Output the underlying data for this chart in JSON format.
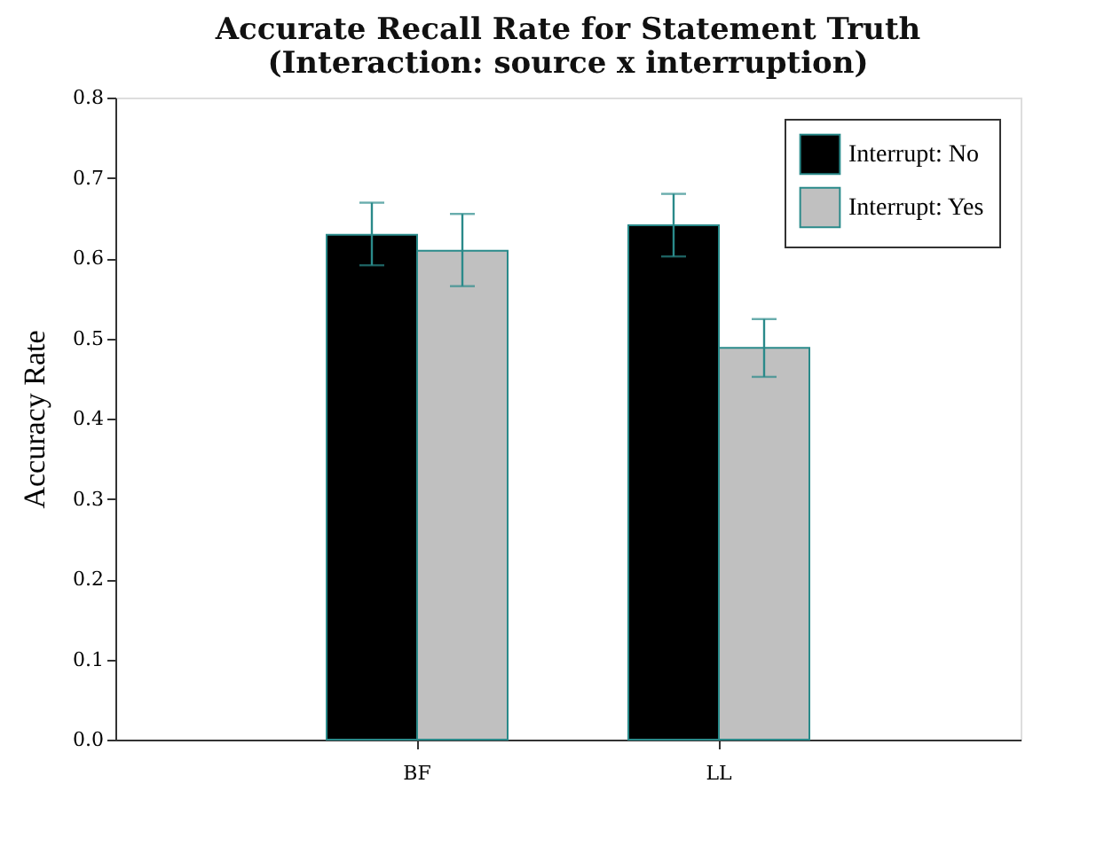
{
  "chart_data": {
    "type": "bar",
    "title": [
      "Accurate Recall Rate for Statement Truth",
      "(Interaction: source x interruption)"
    ],
    "ylabel": "Accuracy Rate",
    "categories": [
      "BF",
      "LL"
    ],
    "series": [
      {
        "name": "Interrupt: No",
        "color": "#000000",
        "values": [
          0.629,
          0.641
        ],
        "errors": [
          [
            0.591,
            0.669
          ],
          [
            0.602,
            0.68
          ]
        ]
      },
      {
        "name": "Interrupt: Yes",
        "color": "#c0c0c0",
        "values": [
          0.609,
          0.488
        ],
        "errors": [
          [
            0.565,
            0.655
          ],
          [
            0.452,
            0.524
          ]
        ]
      }
    ],
    "ylim": [
      0.0,
      0.8
    ],
    "yticks": [
      {
        "value": 0.0,
        "label": "0.0"
      },
      {
        "value": 0.1,
        "label": "0.1"
      },
      {
        "value": 0.2,
        "label": "0.2"
      },
      {
        "value": 0.3,
        "label": "0.3"
      },
      {
        "value": 0.4,
        "label": "0.4"
      },
      {
        "value": 0.5,
        "label": "0.5"
      },
      {
        "value": 0.6,
        "label": "0.6"
      },
      {
        "value": 0.7,
        "label": "0.7"
      },
      {
        "value": 0.8,
        "label": "0.8"
      }
    ],
    "grid": false,
    "legend": "top right"
  }
}
